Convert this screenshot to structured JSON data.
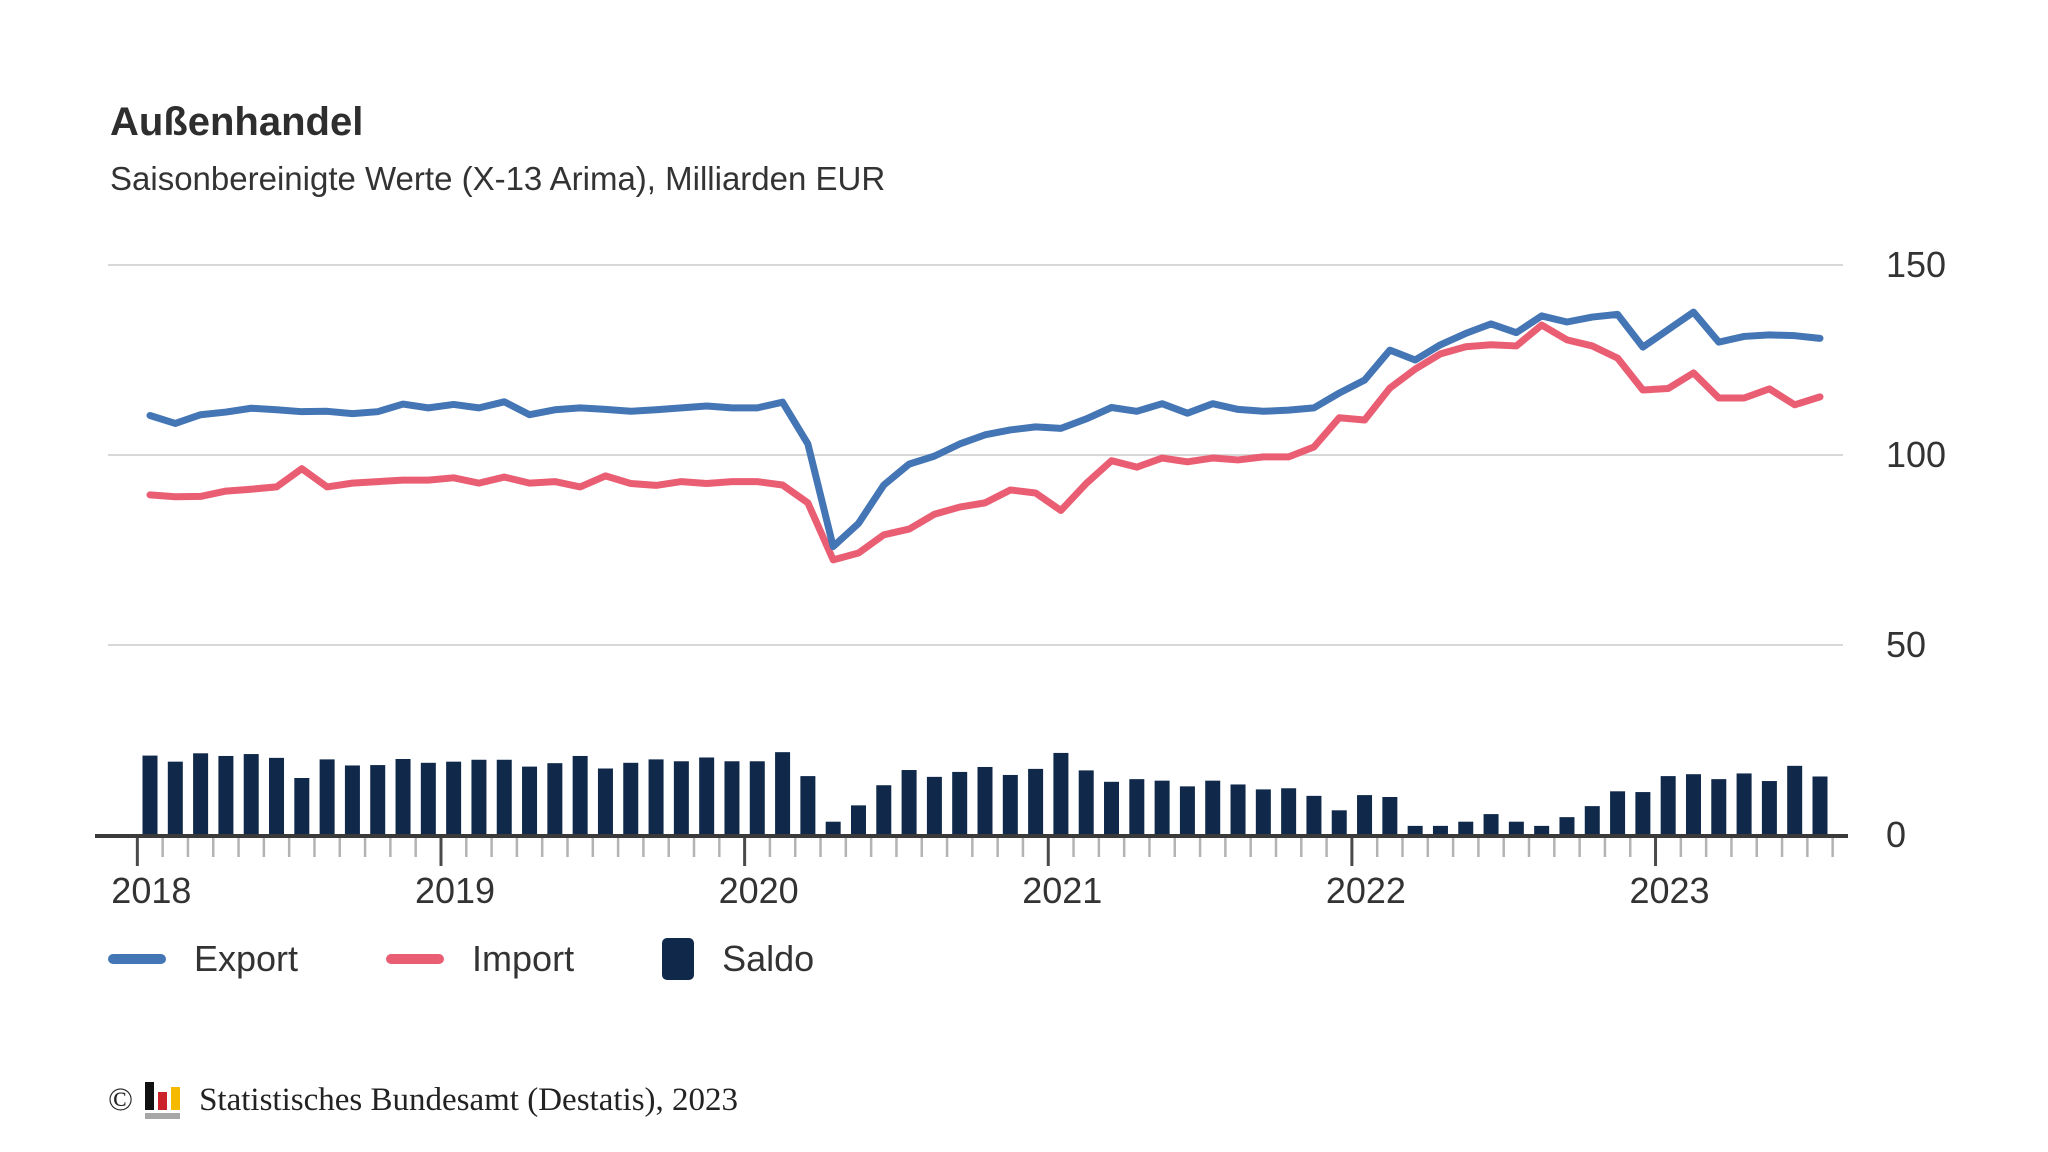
{
  "title": "Außenhandel",
  "subtitle": "Saisonbereinigte Werte (X-13 Arima), Milliarden EUR",
  "legend": [
    {
      "label": "Export",
      "type": "line",
      "color": "#4475b4"
    },
    {
      "label": "Import",
      "type": "line",
      "color": "#ea5e73"
    },
    {
      "label": "Saldo",
      "type": "bar",
      "color": "#10294b"
    }
  ],
  "footer": {
    "copyright": "©",
    "text": "Statistisches Bundesamt (Destatis), 2023",
    "logo_colors": {
      "black": "#111111",
      "red": "#cc2229",
      "gold": "#f5b900",
      "base": "#a7a7a7"
    }
  },
  "colors": {
    "grid": "#d8d8d8",
    "axis": "#3a3a3a",
    "tick_minor": "#b3b3b3",
    "tick_major": "#4a4a4a",
    "text": "#333333"
  },
  "chart_data": {
    "type": "line+bar",
    "title": "Außenhandel",
    "subtitle": "Saisonbereinigte Werte (X-13 Arima), Milliarden EUR",
    "unit": "Milliarden EUR",
    "ylim": [
      0,
      150
    ],
    "y_ticks": [
      150,
      100,
      50,
      0
    ],
    "x_year_ticks": [
      "2018",
      "2019",
      "2020",
      "2021",
      "2022",
      "2023"
    ],
    "grid": true,
    "legend_position": "bottom",
    "x": [
      "2018-01",
      "2018-02",
      "2018-03",
      "2018-04",
      "2018-05",
      "2018-06",
      "2018-07",
      "2018-08",
      "2018-09",
      "2018-10",
      "2018-11",
      "2018-12",
      "2019-01",
      "2019-02",
      "2019-03",
      "2019-04",
      "2019-05",
      "2019-06",
      "2019-07",
      "2019-08",
      "2019-09",
      "2019-10",
      "2019-11",
      "2019-12",
      "2020-01",
      "2020-02",
      "2020-03",
      "2020-04",
      "2020-05",
      "2020-06",
      "2020-07",
      "2020-08",
      "2020-09",
      "2020-10",
      "2020-11",
      "2020-12",
      "2021-01",
      "2021-02",
      "2021-03",
      "2021-04",
      "2021-05",
      "2021-06",
      "2021-07",
      "2021-08",
      "2021-09",
      "2021-10",
      "2021-11",
      "2021-12",
      "2022-01",
      "2022-02",
      "2022-03",
      "2022-04",
      "2022-05",
      "2022-06",
      "2022-07",
      "2022-08",
      "2022-09",
      "2022-10",
      "2022-11",
      "2022-12",
      "2023-01",
      "2023-02",
      "2023-03",
      "2023-04",
      "2023-05",
      "2023-06",
      "2023-07"
    ],
    "series": [
      {
        "name": "Export",
        "type": "line",
        "color": "#4475b4",
        "values": [
          110.4,
          108.3,
          110.6,
          111.3,
          112.3,
          111.9,
          111.4,
          111.5,
          110.9,
          111.4,
          113.4,
          112.4,
          113.3,
          112.4,
          114.0,
          110.6,
          111.9,
          112.4,
          112.0,
          111.5,
          111.9,
          112.4,
          112.9,
          112.4,
          112.4,
          113.9,
          102.9,
          75.9,
          82.0,
          92.1,
          97.6,
          99.7,
          102.9,
          105.3,
          106.6,
          107.4,
          107.0,
          109.5,
          112.5,
          111.5,
          113.5,
          111.0,
          113.5,
          112.0,
          111.5,
          111.8,
          112.4,
          116.3,
          119.7,
          127.6,
          125.0,
          129.0,
          132.0,
          134.5,
          132.2,
          136.6,
          135.0,
          136.3,
          137.0,
          128.4,
          133.0,
          137.6,
          129.7,
          131.2,
          131.6,
          131.4,
          130.7
        ]
      },
      {
        "name": "Import",
        "type": "line",
        "color": "#ea5e73",
        "values": [
          89.5,
          89.0,
          89.1,
          90.5,
          91.0,
          91.6,
          96.4,
          91.6,
          92.6,
          93.0,
          93.4,
          93.4,
          94.0,
          92.6,
          94.2,
          92.6,
          93.0,
          91.6,
          94.5,
          92.5,
          92.0,
          93.0,
          92.5,
          93.0,
          93.0,
          92.1,
          87.4,
          72.4,
          74.2,
          79.0,
          80.5,
          84.4,
          86.3,
          87.4,
          90.8,
          90.0,
          85.4,
          92.5,
          98.5,
          96.8,
          99.2,
          98.2,
          99.2,
          98.7,
          99.5,
          99.5,
          102.1,
          109.8,
          109.2,
          117.6,
          122.6,
          126.6,
          128.5,
          129.0,
          128.7,
          134.2,
          130.3,
          128.7,
          125.5,
          117.1,
          117.5,
          121.6,
          115.0,
          115.0,
          117.4,
          113.2,
          115.3
        ]
      },
      {
        "name": "Saldo",
        "type": "bar",
        "color": "#10294b",
        "values": [
          20.9,
          19.3,
          21.5,
          20.8,
          21.3,
          20.3,
          15.0,
          19.9,
          18.3,
          18.4,
          20.0,
          19.0,
          19.3,
          19.8,
          19.8,
          18.0,
          18.9,
          20.8,
          17.5,
          19.0,
          19.9,
          19.4,
          20.4,
          19.4,
          19.4,
          21.8,
          15.5,
          3.5,
          7.8,
          13.1,
          17.1,
          15.3,
          16.6,
          17.9,
          15.8,
          17.4,
          21.6,
          17.0,
          14.0,
          14.7,
          14.3,
          12.8,
          14.3,
          13.3,
          12.0,
          12.3,
          10.3,
          6.5,
          10.5,
          10.0,
          2.4,
          2.4,
          3.5,
          5.5,
          3.5,
          2.4,
          4.7,
          7.6,
          11.5,
          11.3,
          15.5,
          16.0,
          14.7,
          16.2,
          14.2,
          18.2,
          15.4
        ]
      }
    ]
  }
}
